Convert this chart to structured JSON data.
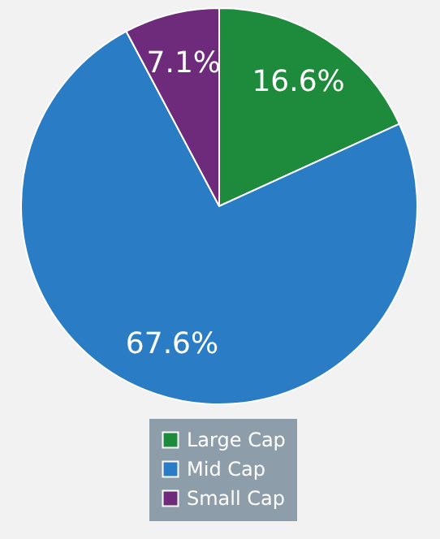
{
  "chart_data": {
    "type": "pie",
    "categories": [
      "Large Cap",
      "Mid Cap",
      "Small Cap"
    ],
    "values": [
      16.6,
      67.6,
      7.1
    ],
    "value_labels": [
      "16.6%",
      "67.6%",
      "7.1%"
    ],
    "colors": [
      "#1e8b3c",
      "#2a7cc4",
      "#6e2b7c"
    ],
    "legend": "bottom"
  }
}
